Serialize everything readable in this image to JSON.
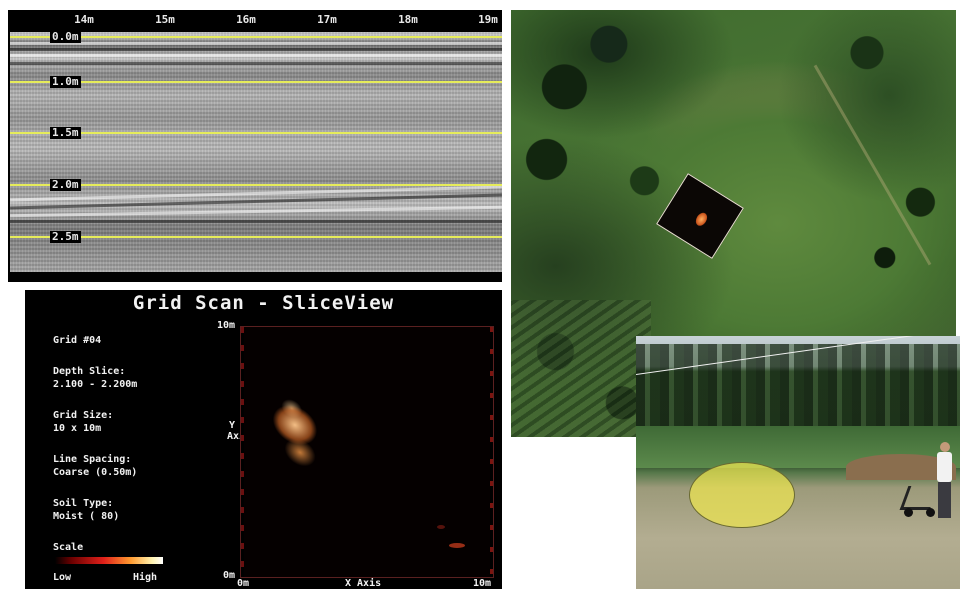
{
  "radargram": {
    "x_ticks": [
      "14m",
      "15m",
      "16m",
      "17m",
      "18m",
      "19m"
    ],
    "depth_labels": [
      "0.0m",
      "1.0m",
      "1.5m",
      "2.0m",
      "2.5m"
    ],
    "line_color": "#e6ec5a"
  },
  "sliceview": {
    "title": "Grid Scan - SliceView",
    "grid_number": "Grid #04",
    "depth_slice_label": "Depth Slice:",
    "depth_slice_value": "2.100 - 2.200m",
    "grid_size_label": "Grid Size:",
    "grid_size_value": "10 x 10m",
    "line_spacing_label": "Line Spacing:",
    "line_spacing_value": "Coarse (0.50m)",
    "soil_type_label": "Soil Type:",
    "soil_type_value": "Moist ( 80)",
    "scale_label": "Scale",
    "scale_low": "Low",
    "scale_high": "High",
    "y_axis_top": "10m",
    "y_axis_bottom": "0m",
    "y_axis_label": "Y Axis",
    "x_axis_start": "0m",
    "x_axis_label": "X Axis",
    "x_axis_end": "10m"
  },
  "images": {
    "aerial": "aerial-site-photo",
    "field": "field-survey-photo"
  }
}
